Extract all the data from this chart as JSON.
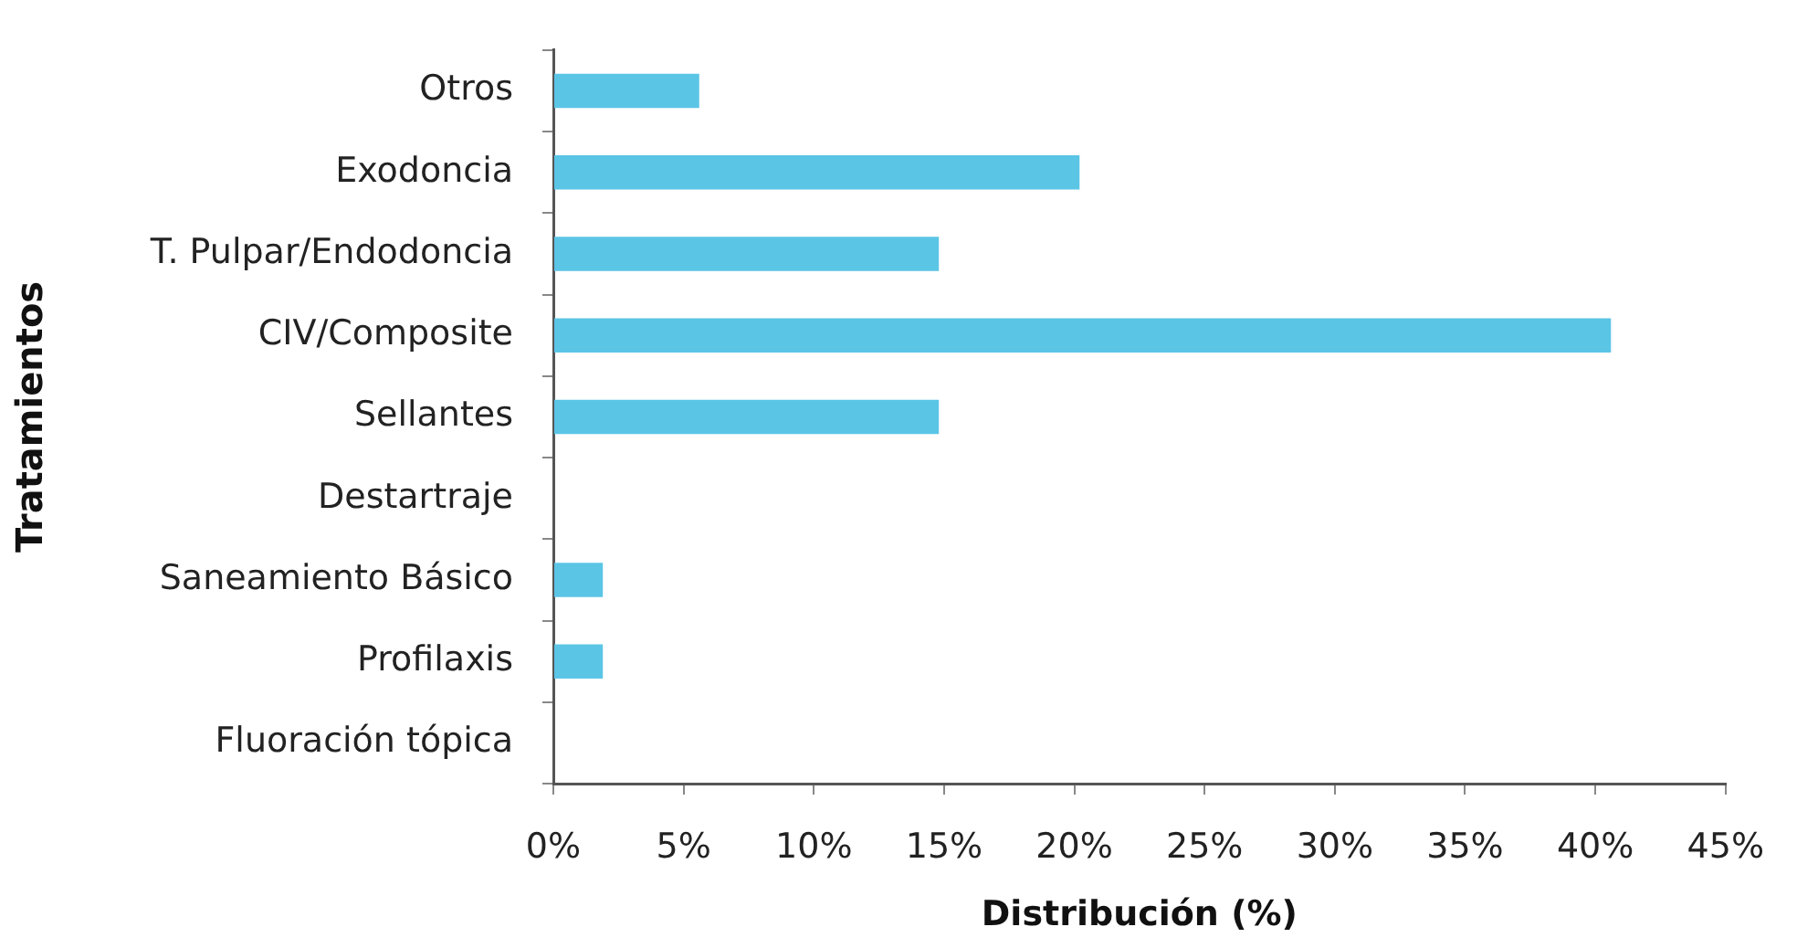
{
  "chart_data": {
    "type": "bar",
    "orientation": "horizontal",
    "xlabel": "Distribución (%)",
    "ylabel": "Tratamientos",
    "categories": [
      "Otros",
      "Exodoncia",
      "T. Pulpar/Endodoncia",
      "CIV/Composite",
      "Sellantes",
      "Destartraje",
      "Saneamiento Básico",
      "Profilaxis",
      "Fluoración tópica"
    ],
    "values": [
      5.6,
      20.2,
      14.8,
      40.6,
      14.8,
      0,
      1.9,
      1.9,
      0
    ],
    "color": "#5bc5e6",
    "xlim": [
      0,
      45
    ],
    "xticks": [
      {
        "value": 0,
        "label": "0%"
      },
      {
        "value": 5,
        "label": "5%"
      },
      {
        "value": 10,
        "label": "10%"
      },
      {
        "value": 15,
        "label": "15%"
      },
      {
        "value": 20,
        "label": "20%"
      },
      {
        "value": 25,
        "label": "25%"
      },
      {
        "value": 30,
        "label": "30%"
      },
      {
        "value": 35,
        "label": "35%"
      },
      {
        "value": 40,
        "label": "40%"
      },
      {
        "value": 45,
        "label": "45%"
      }
    ]
  }
}
